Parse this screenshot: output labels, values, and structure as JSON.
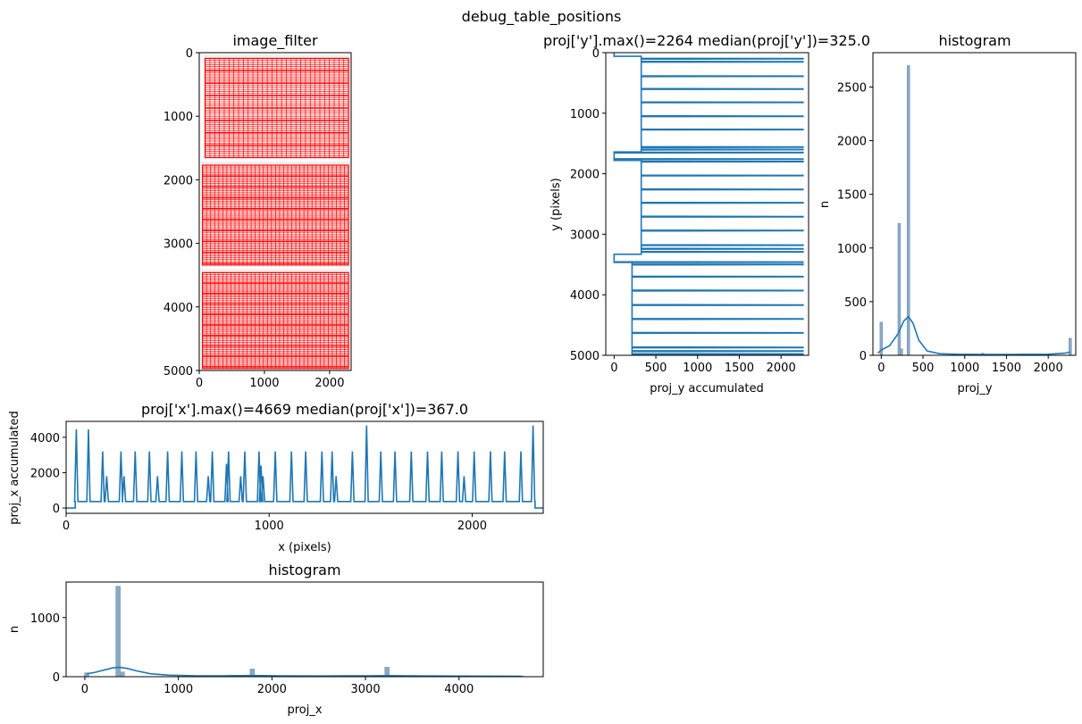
{
  "figure": {
    "title": "debug_table_positions"
  },
  "panels": {
    "image_filter": {
      "title": "image_filter",
      "xticks": [
        "0",
        "1000",
        "2000"
      ],
      "yticks": [
        "0",
        "1000",
        "2000",
        "3000",
        "4000",
        "5000"
      ]
    },
    "proj_y_line": {
      "title": "proj['y'].max()=2264 median(proj['y'])=325.0",
      "xlabel": "proj_y accumulated",
      "ylabel": "y (pixels)",
      "xticks": [
        "0",
        "500",
        "1000",
        "1500",
        "2000"
      ],
      "yticks": [
        "0",
        "1000",
        "2000",
        "3000",
        "4000",
        "5000"
      ]
    },
    "proj_y_hist": {
      "title": "histogram",
      "xlabel": "proj_y",
      "ylabel": "n",
      "xticks": [
        "0",
        "500",
        "1000",
        "1500",
        "2000"
      ],
      "yticks": [
        "0",
        "500",
        "1000",
        "1500",
        "2000",
        "2500"
      ]
    },
    "proj_x_line": {
      "title": "proj['x'].max()=4669 median(proj['x'])=367.0",
      "xlabel": "x (pixels)",
      "ylabel": "proj_x accumulated",
      "xticks": [
        "0",
        "1000",
        "2000"
      ],
      "yticks": [
        "0",
        "2000",
        "4000"
      ]
    },
    "proj_x_hist": {
      "title": "histogram",
      "xlabel": "proj_x",
      "ylabel": "n",
      "xticks": [
        "0",
        "1000",
        "2000",
        "3000",
        "4000"
      ],
      "yticks": [
        "0",
        "1000"
      ]
    }
  },
  "colors": {
    "series": "#1f77b4",
    "hist_fill": "#8aa9c4",
    "filter": "#ff0000",
    "page": "#eeeeee"
  },
  "chart_data": [
    {
      "type": "heatmap",
      "title": "image_filter",
      "xlim": [
        0,
        2330
      ],
      "ylim": [
        5000,
        0
      ],
      "content": "page image with red table cell overlays",
      "tables": [
        {
          "x": [
            90,
            2290
          ],
          "y": [
            90,
            1650
          ]
        },
        {
          "x": [
            50,
            2290
          ],
          "y": [
            1770,
            3340
          ]
        },
        {
          "x": [
            50,
            2290
          ],
          "y": [
            3460,
            4970
          ]
        }
      ]
    },
    {
      "type": "line",
      "title": "proj['y'].max()=2264 median(proj['y'])=325.0",
      "xlabel": "proj_y accumulated",
      "ylabel": "y (pixels)",
      "xlim": [
        -100,
        2330
      ],
      "ylim": [
        5000,
        0
      ],
      "baseline_segments": [
        {
          "y": [
            0,
            60
          ],
          "value": 0
        },
        {
          "y": [
            60,
            1640
          ],
          "value": 325
        },
        {
          "y": [
            1640,
            1780
          ],
          "value": 0
        },
        {
          "y": [
            1780,
            3330
          ],
          "value": 325
        },
        {
          "y": [
            3330,
            3460
          ],
          "value": 0
        },
        {
          "y": [
            3460,
            5000
          ],
          "value": 215
        }
      ],
      "peak_rows": [
        100,
        150,
        390,
        600,
        820,
        1050,
        1270,
        1560,
        1600,
        1650,
        1760,
        1800,
        2030,
        2260,
        2480,
        2710,
        2940,
        3180,
        3240,
        3290,
        3460,
        3500,
        3700,
        3930,
        4170,
        4400,
        4630,
        4870,
        4930,
        4980
      ],
      "peak_value": 2264
    },
    {
      "type": "bar",
      "title": "histogram",
      "xlabel": "proj_y",
      "ylabel": "n",
      "xlim": [
        -100,
        2330
      ],
      "ylim": [
        0,
        2820
      ],
      "bins": [
        {
          "x": 0,
          "count": 310
        },
        {
          "x": 215,
          "count": 1230
        },
        {
          "x": 240,
          "count": 60
        },
        {
          "x": 325,
          "count": 2700
        },
        {
          "x": 1215,
          "count": 20
        },
        {
          "x": 2264,
          "count": 160
        }
      ],
      "kde": {
        "x": [
          -40,
          0,
          100,
          200,
          270,
          325,
          380,
          450,
          550,
          700,
          900,
          1200,
          1600,
          2000,
          2200,
          2264
        ],
        "y": [
          20,
          50,
          90,
          200,
          320,
          360,
          300,
          140,
          40,
          15,
          10,
          8,
          8,
          10,
          20,
          30
        ]
      }
    },
    {
      "type": "line",
      "title": "proj['x'].max()=4669 median(proj['x'])=367.0",
      "xlabel": "x (pixels)",
      "ylabel": "proj_x accumulated",
      "xlim": [
        0,
        2350
      ],
      "ylim": [
        -300,
        4900
      ],
      "baseline_segments": [
        {
          "x": [
            0,
            45
          ],
          "value": 0
        },
        {
          "x": [
            45,
            2310
          ],
          "value": 367
        },
        {
          "x": [
            2310,
            2350
          ],
          "value": 0
        }
      ],
      "peaks": [
        {
          "x": 50,
          "value": 4450
        },
        {
          "x": 110,
          "value": 4450
        },
        {
          "x": 180,
          "value": 3200
        },
        {
          "x": 200,
          "value": 1800
        },
        {
          "x": 270,
          "value": 3200
        },
        {
          "x": 285,
          "value": 1800
        },
        {
          "x": 340,
          "value": 3200
        },
        {
          "x": 410,
          "value": 3200
        },
        {
          "x": 450,
          "value": 1800
        },
        {
          "x": 500,
          "value": 3200
        },
        {
          "x": 570,
          "value": 3200
        },
        {
          "x": 640,
          "value": 3200
        },
        {
          "x": 700,
          "value": 1800
        },
        {
          "x": 720,
          "value": 3200
        },
        {
          "x": 800,
          "value": 3200
        },
        {
          "x": 790,
          "value": 2500
        },
        {
          "x": 860,
          "value": 1800
        },
        {
          "x": 880,
          "value": 3200
        },
        {
          "x": 950,
          "value": 3200
        },
        {
          "x": 960,
          "value": 2400
        },
        {
          "x": 970,
          "value": 1800
        },
        {
          "x": 1030,
          "value": 3200
        },
        {
          "x": 1110,
          "value": 3200
        },
        {
          "x": 1180,
          "value": 3200
        },
        {
          "x": 1260,
          "value": 3200
        },
        {
          "x": 1310,
          "value": 3200
        },
        {
          "x": 1330,
          "value": 1800
        },
        {
          "x": 1410,
          "value": 3200
        },
        {
          "x": 1480,
          "value": 4669
        },
        {
          "x": 1550,
          "value": 3200
        },
        {
          "x": 1620,
          "value": 3200
        },
        {
          "x": 1700,
          "value": 3200
        },
        {
          "x": 1780,
          "value": 3200
        },
        {
          "x": 1850,
          "value": 3200
        },
        {
          "x": 1930,
          "value": 3200
        },
        {
          "x": 1960,
          "value": 1800
        },
        {
          "x": 2010,
          "value": 3200
        },
        {
          "x": 2090,
          "value": 3200
        },
        {
          "x": 2160,
          "value": 3200
        },
        {
          "x": 2240,
          "value": 3200
        },
        {
          "x": 2300,
          "value": 4669
        }
      ]
    },
    {
      "type": "bar",
      "title": "histogram",
      "xlabel": "proj_x",
      "ylabel": "n",
      "xlim": [
        -200,
        4900
      ],
      "ylim": [
        0,
        1600
      ],
      "bins": [
        {
          "x": 20,
          "count": 65
        },
        {
          "x": 355,
          "count": 1530
        },
        {
          "x": 400,
          "count": 80
        },
        {
          "x": 1790,
          "count": 130
        },
        {
          "x": 3230,
          "count": 160
        },
        {
          "x": 4669,
          "count": 10
        }
      ],
      "kde": {
        "x": [
          20,
          100,
          200,
          300,
          367,
          450,
          550,
          700,
          900,
          1200,
          1500,
          1800,
          2100,
          2500,
          3000,
          3230,
          3500,
          4000,
          4669
        ],
        "y": [
          50,
          70,
          110,
          150,
          160,
          140,
          100,
          50,
          25,
          15,
          15,
          20,
          15,
          12,
          15,
          18,
          14,
          10,
          8
        ]
      }
    }
  ]
}
